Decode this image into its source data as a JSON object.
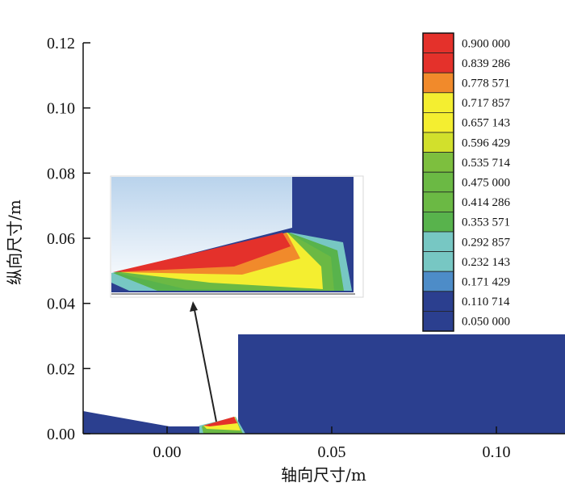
{
  "chart_data": {
    "type": "heatmap",
    "title": "",
    "xlabel": "轴向尺寸/m",
    "ylabel": "纵向尺寸/m",
    "xlim": [
      -0.025,
      0.12
    ],
    "ylim": [
      0,
      0.12
    ],
    "x_ticks": [
      {
        "value": 0.0,
        "label": "0.00"
      },
      {
        "value": 0.05,
        "label": "0.05"
      },
      {
        "value": 0.1,
        "label": "0.10"
      }
    ],
    "y_ticks": [
      {
        "value": 0.0,
        "label": "0.00"
      },
      {
        "value": 0.02,
        "label": "0.02"
      },
      {
        "value": 0.04,
        "label": "0.04"
      },
      {
        "value": 0.06,
        "label": "0.06"
      },
      {
        "value": 0.08,
        "label": "0.08"
      },
      {
        "value": 0.1,
        "label": "0.10"
      },
      {
        "value": 0.12,
        "label": "0.12"
      }
    ],
    "legend_position": "top-right",
    "legend": [
      {
        "label": "0.900 000",
        "color": "#e4312b"
      },
      {
        "label": "0.839 286",
        "color": "#e4312b"
      },
      {
        "label": "0.778 571",
        "color": "#f18a2b"
      },
      {
        "label": "0.717 857",
        "color": "#f4ee30"
      },
      {
        "label": "0.657 143",
        "color": "#f4ee30"
      },
      {
        "label": "0.596 429",
        "color": "#d2e02c"
      },
      {
        "label": "0.535 714",
        "color": "#7dbf3e"
      },
      {
        "label": "0.475 000",
        "color": "#6bb944"
      },
      {
        "label": "0.414 286",
        "color": "#6bb944"
      },
      {
        "label": "0.353 571",
        "color": "#58b34c"
      },
      {
        "label": "0.292 857",
        "color": "#77c7c3"
      },
      {
        "label": "0.232 143",
        "color": "#77c7c3"
      },
      {
        "label": "0.171 429",
        "color": "#4d8cc8"
      },
      {
        "label": "0.110 714",
        "color": "#2b3f8f"
      },
      {
        "label": "0.050 000",
        "color": "#2b3f8f"
      }
    ],
    "background_color": "#2b3f8f"
  }
}
